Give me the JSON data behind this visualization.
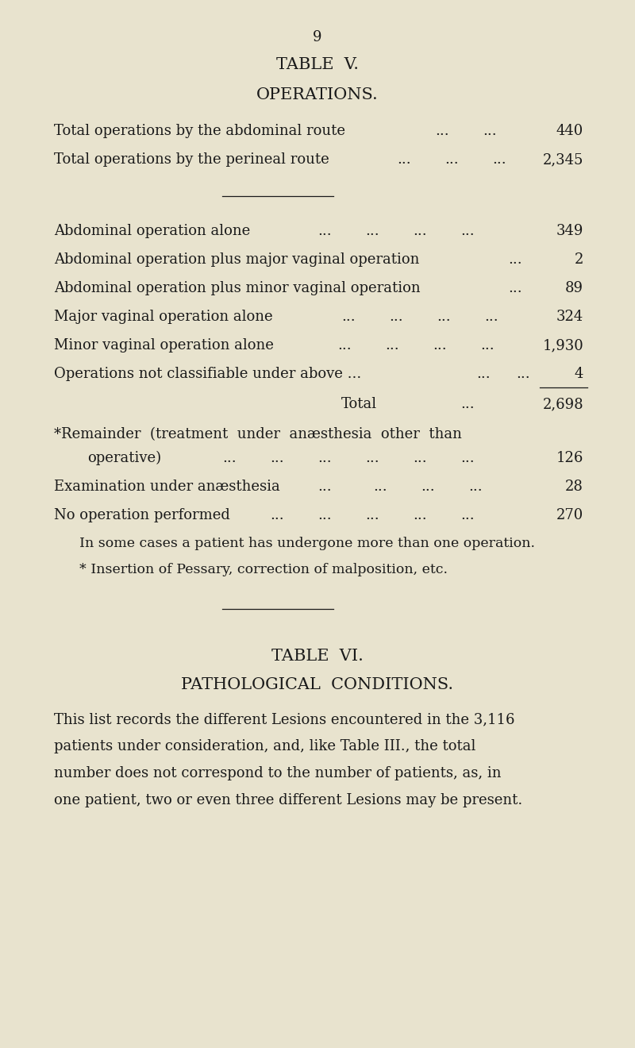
{
  "bg_color": "#e8e3ce",
  "text_color": "#1a1a1a",
  "page_number": "9",
  "title1": "TABLE  V.",
  "title2": "OPERATIONS.",
  "title3": "TABLE  VI.",
  "title4": "PATHOLOGICAL  CONDITIONS.",
  "note1": "In some cases a patient has undergone more than one operation.",
  "note2": "* Insertion of Pessary, correction of malposition, etc.",
  "paragraph_lines": [
    "This list records the different Lesions encountered in the 3,116",
    "patients under consideration, and, like Table III., the total",
    "number does not correspond to the number of patients, as, in",
    "one patient, two or even three different Lesions may be present."
  ]
}
